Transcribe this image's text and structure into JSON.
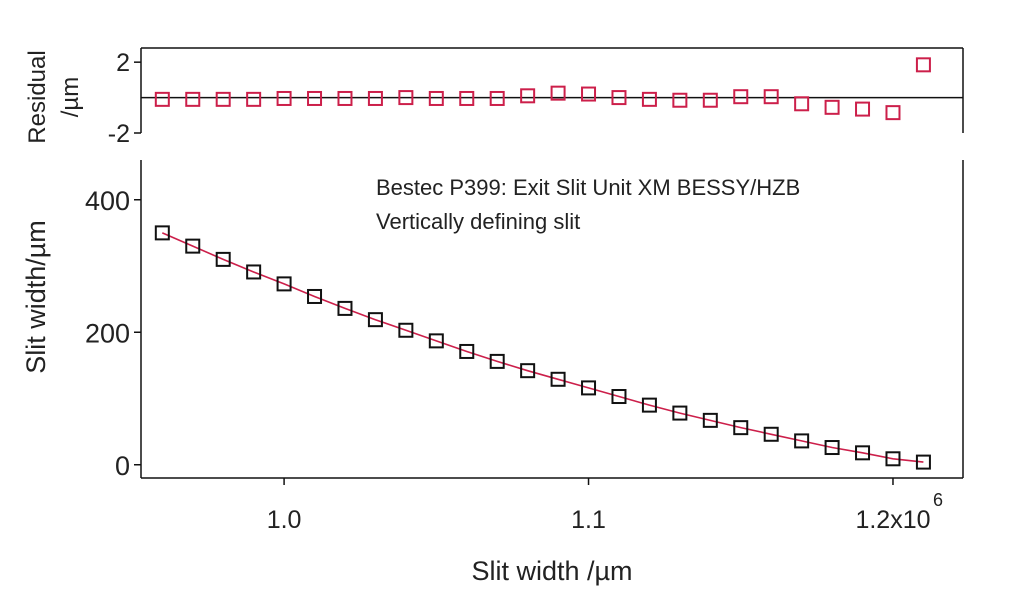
{
  "chart_data": {
    "type": "scatter",
    "x_axis": {
      "label": "Slit width /µm",
      "range": [
        953000,
        1223000
      ],
      "ticks": [
        {
          "value": 1000000,
          "label": "1.0"
        },
        {
          "value": 1100000,
          "label": "1.1"
        },
        {
          "value": 1200000,
          "label": "1.2x10"
        }
      ],
      "exponent_label": "6"
    },
    "residual_panel": {
      "ylabel": "Residual /µm",
      "ylabel_lines": [
        "Residual",
        "/µm"
      ],
      "ylim": [
        -2,
        2.8
      ],
      "yticks": [
        {
          "value": 2,
          "label": "2"
        },
        {
          "value": -2,
          "label": "-2"
        }
      ],
      "zero_line": 0,
      "marker_color": "#cc1f4a",
      "values": [
        -0.1,
        -0.1,
        -0.1,
        -0.1,
        -0.05,
        -0.05,
        -0.05,
        -0.05,
        0,
        -0.05,
        -0.05,
        -0.05,
        0.1,
        0.25,
        0.2,
        0,
        -0.1,
        -0.15,
        -0.15,
        0.05,
        0.05,
        -0.35,
        -0.55,
        -0.65,
        -0.85,
        1.85
      ]
    },
    "main_panel": {
      "ylabel": "Slit width/µm",
      "ylim": [
        -20,
        460
      ],
      "yticks": [
        {
          "value": 0,
          "label": "0"
        },
        {
          "value": 200,
          "label": "200"
        },
        {
          "value": 400,
          "label": "400"
        }
      ],
      "annotation": [
        "Bestec P399: Exit Slit Unit XM BESSY/HZB",
        "Vertically defining slit"
      ],
      "marker_color": "#111111",
      "fit_color": "#cc1f4a",
      "x": [
        960000,
        970000,
        980000,
        990000,
        1000000,
        1010000,
        1020000,
        1030000,
        1040000,
        1050000,
        1060000,
        1070000,
        1080000,
        1090000,
        1100000,
        1110000,
        1120000,
        1130000,
        1140000,
        1150000,
        1160000,
        1170000,
        1180000,
        1190000,
        1200000,
        1210000
      ],
      "y": [
        350,
        330,
        310,
        291,
        273,
        254,
        236,
        219,
        203,
        187,
        171,
        156,
        142,
        129,
        116,
        103,
        90,
        78,
        67,
        56,
        46,
        36,
        26,
        18,
        9,
        4
      ]
    }
  }
}
